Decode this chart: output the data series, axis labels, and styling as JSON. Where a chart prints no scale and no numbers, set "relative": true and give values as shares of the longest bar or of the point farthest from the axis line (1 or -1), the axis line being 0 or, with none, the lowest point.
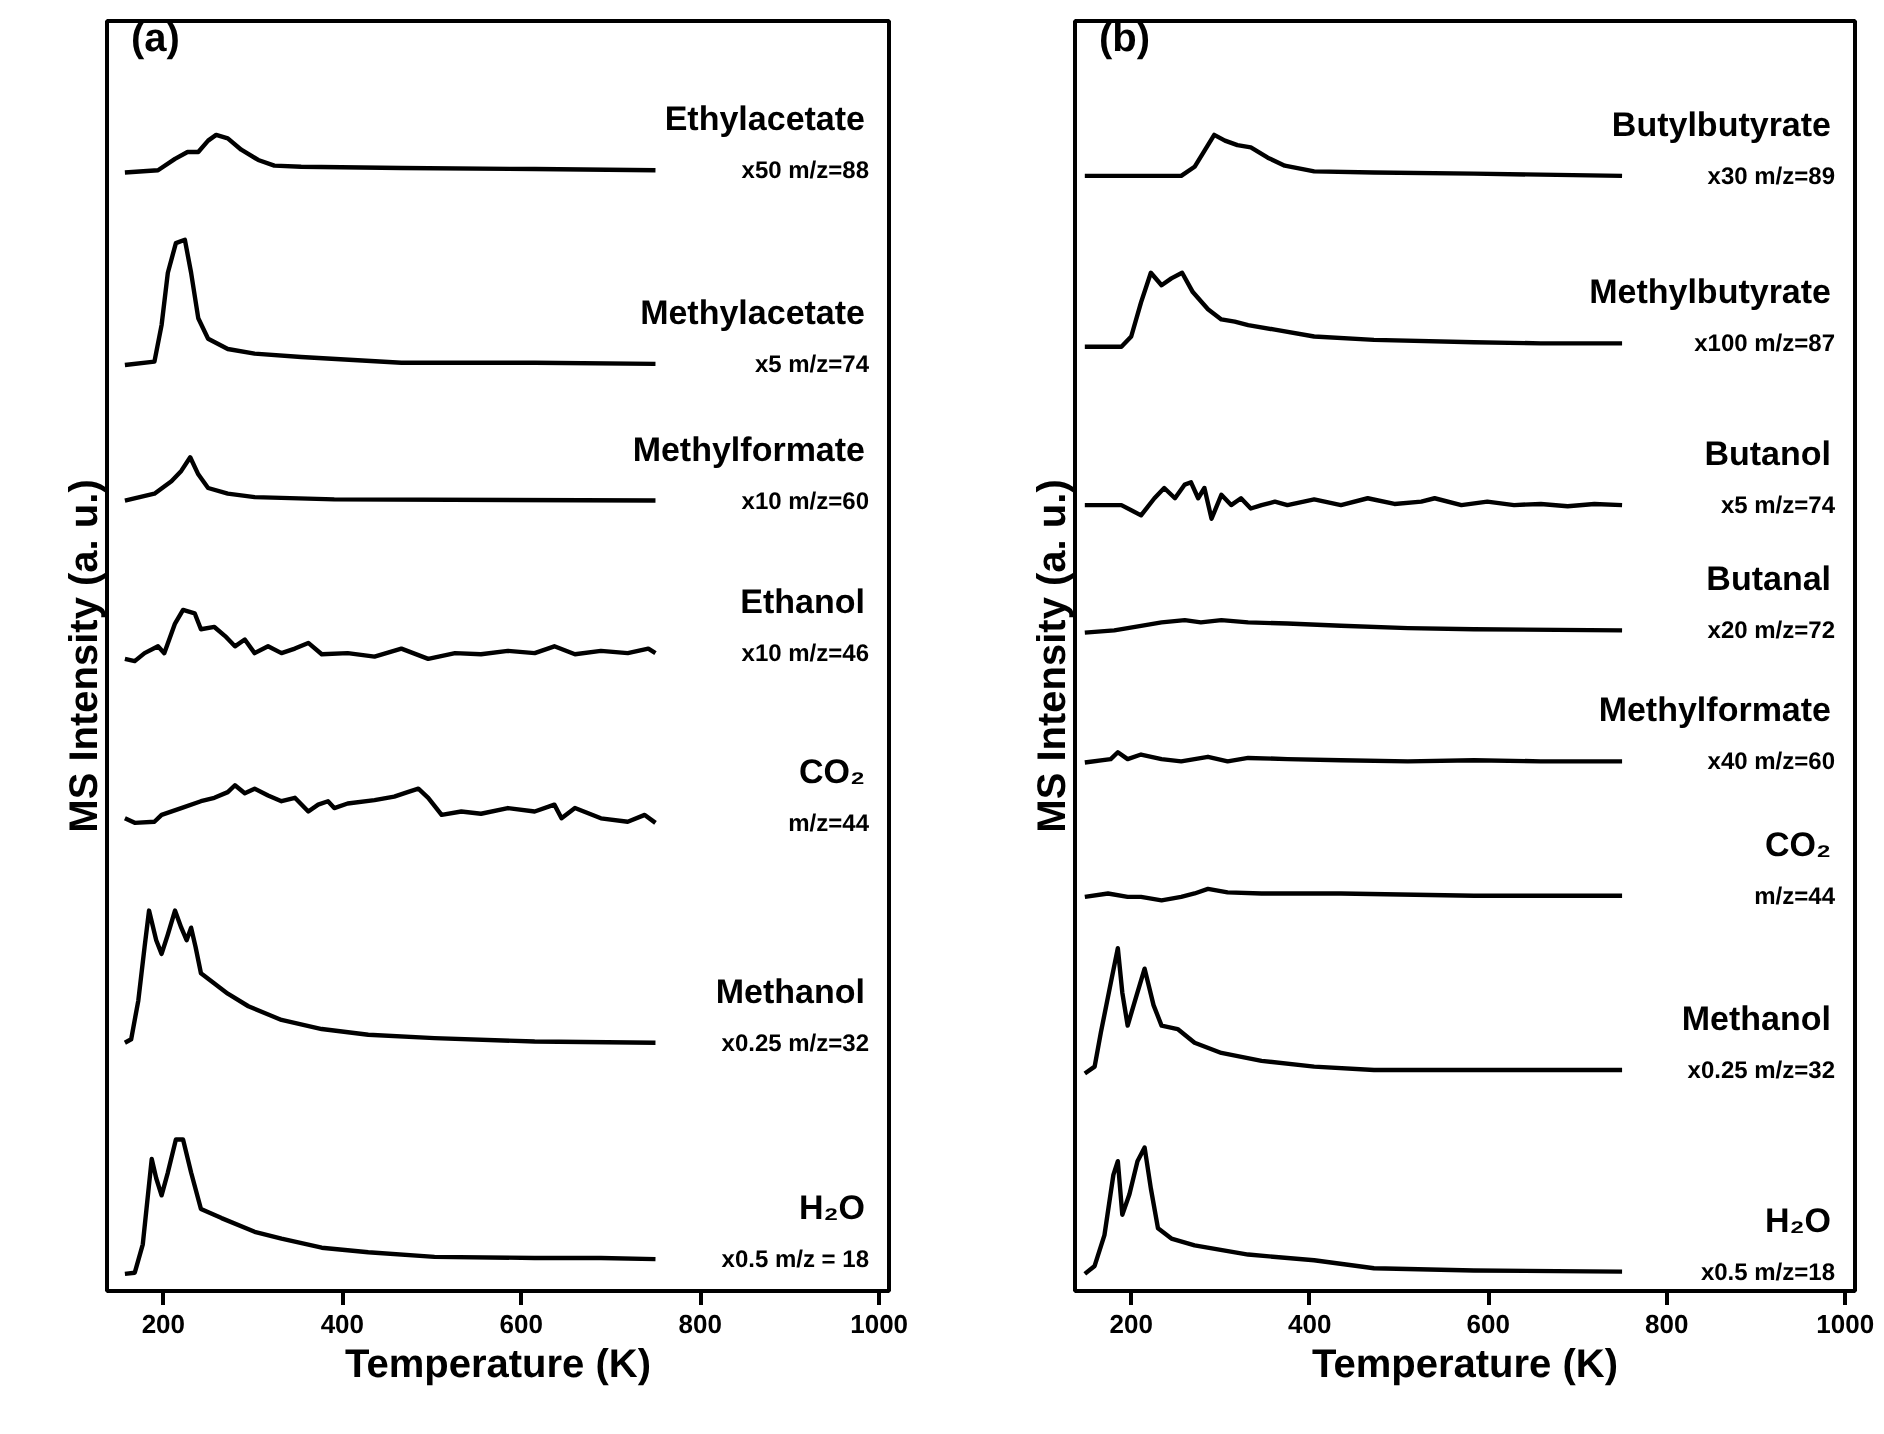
{
  "chart_data": [
    {
      "type": "line",
      "title": "(a)",
      "xlabel": "Temperature (K)",
      "ylabel": "MS Intensity (a. u.)",
      "relative": true,
      "xlim": [
        137,
        1011
      ],
      "xticks": [
        200,
        400,
        600,
        800,
        1000
      ],
      "series": [
        {
          "name": "Ethylacetate",
          "color": "#000000",
          "x": [
            157,
            194,
            213,
            227,
            239,
            250,
            259,
            272,
            287,
            306,
            324,
            354,
            466,
            615,
            750
          ],
          "values": [
            0.967,
            0.969,
            0.979,
            0.985,
            0.985,
            0.995,
            1.0,
            0.997,
            0.987,
            0.978,
            0.973,
            0.972,
            0.971,
            0.97,
            0.969
          ]
        },
        {
          "name": "Methylacetate",
          "color": "#000000",
          "x": [
            157,
            190,
            198,
            205,
            214,
            224,
            231,
            239,
            250,
            272,
            302,
            354,
            466,
            615,
            750
          ],
          "values": [
            0.798,
            0.801,
            0.833,
            0.879,
            0.905,
            0.908,
            0.879,
            0.839,
            0.821,
            0.812,
            0.808,
            0.805,
            0.8,
            0.8,
            0.799
          ]
        },
        {
          "name": "Methylformate",
          "color": "#000000",
          "x": [
            157,
            190,
            209,
            220,
            230,
            239,
            250,
            272,
            302,
            391,
            750
          ],
          "values": [
            0.679,
            0.685,
            0.696,
            0.705,
            0.717,
            0.702,
            0.69,
            0.685,
            0.682,
            0.68,
            0.679
          ]
        },
        {
          "name": "Ethanol",
          "color": "#000000",
          "x": [
            157,
            168,
            179,
            194,
            201,
            213,
            222,
            235,
            242,
            257,
            269,
            280,
            291,
            302,
            317,
            332,
            347,
            362,
            377,
            406,
            436,
            466,
            496,
            526,
            555,
            585,
            615,
            637,
            660,
            689,
            719,
            742,
            750
          ],
          "values": [
            0.54,
            0.538,
            0.545,
            0.551,
            0.545,
            0.571,
            0.583,
            0.58,
            0.566,
            0.568,
            0.56,
            0.551,
            0.557,
            0.545,
            0.551,
            0.545,
            0.549,
            0.554,
            0.544,
            0.545,
            0.542,
            0.549,
            0.54,
            0.545,
            0.544,
            0.547,
            0.545,
            0.551,
            0.544,
            0.547,
            0.545,
            0.549,
            0.545
          ]
        },
        {
          "name": "CO₂",
          "color": "#000000",
          "x": [
            157,
            168,
            190,
            198,
            220,
            242,
            257,
            272,
            280,
            291,
            302,
            317,
            332,
            347,
            362,
            373,
            384,
            391,
            406,
            436,
            458,
            473,
            485,
            496,
            511,
            533,
            555,
            585,
            615,
            637,
            645,
            660,
            689,
            719,
            738,
            750
          ],
          "values": [
            0.4,
            0.396,
            0.397,
            0.403,
            0.409,
            0.415,
            0.418,
            0.423,
            0.429,
            0.422,
            0.426,
            0.42,
            0.415,
            0.418,
            0.406,
            0.412,
            0.415,
            0.409,
            0.413,
            0.416,
            0.419,
            0.423,
            0.426,
            0.418,
            0.403,
            0.406,
            0.404,
            0.409,
            0.406,
            0.412,
            0.4,
            0.409,
            0.4,
            0.397,
            0.403,
            0.396
          ]
        },
        {
          "name": "Methanol",
          "color": "#000000",
          "x": [
            157,
            164,
            172,
            179,
            184,
            192,
            198,
            205,
            213,
            220,
            226,
            231,
            236,
            242,
            257,
            272,
            295,
            332,
            377,
            429,
            503,
            615,
            750
          ],
          "values": [
            0.203,
            0.206,
            0.24,
            0.287,
            0.319,
            0.293,
            0.281,
            0.298,
            0.319,
            0.304,
            0.293,
            0.304,
            0.287,
            0.264,
            0.255,
            0.246,
            0.235,
            0.223,
            0.215,
            0.21,
            0.207,
            0.204,
            0.203
          ]
        },
        {
          "name": "H₂O",
          "color": "#000000",
          "x": [
            157,
            168,
            177,
            187,
            192,
            198,
            205,
            214,
            222,
            231,
            242,
            265,
            302,
            332,
            377,
            429,
            503,
            615,
            689,
            750
          ],
          "values": [
            0.0,
            0.001,
            0.026,
            0.101,
            0.084,
            0.069,
            0.089,
            0.118,
            0.118,
            0.089,
            0.057,
            0.049,
            0.037,
            0.031,
            0.023,
            0.019,
            0.015,
            0.014,
            0.014,
            0.013
          ]
        }
      ],
      "annotations": [
        "x50 m/z=88",
        "x5 m/z=74",
        "x10 m/z=60",
        "x10 m/z=46",
        "m/z=44",
        "x0.25 m/z=32",
        "x0.5 m/z = 18"
      ]
    },
    {
      "type": "line",
      "title": "(b)",
      "xlabel": "Temperature (K)",
      "ylabel": "MS Intensity (a. u.)",
      "relative": true,
      "xlim": [
        137,
        1011
      ],
      "xticks": [
        200,
        400,
        600,
        800,
        1000
      ],
      "series": [
        {
          "name": "Butylbutyrate",
          "color": "#000000",
          "x": [
            148,
            211,
            256,
            271,
            282,
            293,
            305,
            319,
            334,
            353,
            372,
            405,
            472,
            584,
            750
          ],
          "values": [
            0.964,
            0.964,
            0.964,
            0.972,
            0.986,
            1.0,
            0.995,
            0.991,
            0.989,
            0.98,
            0.973,
            0.968,
            0.967,
            0.966,
            0.964
          ]
        },
        {
          "name": "Methylbutyrate",
          "color": "#000000",
          "x": [
            148,
            189,
            200,
            211,
            222,
            234,
            245,
            257,
            269,
            286,
            301,
            316,
            331,
            361,
            405,
            472,
            584,
            659,
            750
          ],
          "values": [
            0.814,
            0.814,
            0.823,
            0.853,
            0.879,
            0.868,
            0.874,
            0.879,
            0.862,
            0.847,
            0.838,
            0.836,
            0.833,
            0.829,
            0.823,
            0.82,
            0.818,
            0.817,
            0.817
          ]
        },
        {
          "name": "Butanol",
          "color": "#000000",
          "x": [
            148,
            189,
            211,
            226,
            237,
            249,
            260,
            267,
            275,
            282,
            290,
            301,
            312,
            323,
            334,
            346,
            361,
            375,
            405,
            435,
            465,
            495,
            525,
            540,
            570,
            599,
            629,
            659,
            689,
            719,
            750
          ],
          "values": [
            0.675,
            0.675,
            0.666,
            0.681,
            0.69,
            0.681,
            0.693,
            0.695,
            0.681,
            0.69,
            0.663,
            0.684,
            0.675,
            0.681,
            0.672,
            0.675,
            0.678,
            0.675,
            0.68,
            0.675,
            0.681,
            0.676,
            0.678,
            0.681,
            0.675,
            0.678,
            0.675,
            0.676,
            0.674,
            0.676,
            0.675
          ]
        },
        {
          "name": "Butanal",
          "color": "#000000",
          "x": [
            148,
            181,
            211,
            234,
            260,
            278,
            301,
            331,
            375,
            435,
            510,
            584,
            750
          ],
          "values": [
            0.563,
            0.565,
            0.569,
            0.572,
            0.574,
            0.572,
            0.574,
            0.572,
            0.571,
            0.569,
            0.567,
            0.566,
            0.565
          ]
        },
        {
          "name": "Methylformate",
          "color": "#000000",
          "x": [
            148,
            177,
            185,
            196,
            211,
            234,
            256,
            286,
            308,
            331,
            375,
            435,
            510,
            584,
            659,
            750
          ],
          "values": [
            0.449,
            0.452,
            0.458,
            0.452,
            0.456,
            0.452,
            0.45,
            0.454,
            0.45,
            0.453,
            0.452,
            0.451,
            0.45,
            0.451,
            0.45,
            0.45
          ]
        },
        {
          "name": "CO₂",
          "color": "#000000",
          "x": [
            148,
            174,
            196,
            211,
            234,
            256,
            271,
            286,
            308,
            346,
            435,
            584,
            750
          ],
          "values": [
            0.331,
            0.334,
            0.331,
            0.331,
            0.328,
            0.331,
            0.334,
            0.338,
            0.335,
            0.334,
            0.334,
            0.332,
            0.332
          ]
        },
        {
          "name": "Methanol",
          "color": "#000000",
          "x": [
            148,
            159,
            166,
            178,
            185,
            190,
            196,
            205,
            215,
            225,
            234,
            252,
            271,
            301,
            346,
            405,
            472,
            584,
            750
          ],
          "values": [
            0.176,
            0.182,
            0.212,
            0.259,
            0.286,
            0.247,
            0.218,
            0.242,
            0.268,
            0.236,
            0.218,
            0.215,
            0.203,
            0.194,
            0.187,
            0.182,
            0.179,
            0.179,
            0.179
          ]
        },
        {
          "name": "H₂O",
          "color": "#000000",
          "x": [
            148,
            159,
            170,
            180,
            185,
            190,
            198,
            207,
            215,
            222,
            230,
            245,
            271,
            331,
            405,
            472,
            584,
            750
          ],
          "values": [
            0.0,
            0.007,
            0.034,
            0.087,
            0.099,
            0.052,
            0.07,
            0.099,
            0.111,
            0.075,
            0.04,
            0.031,
            0.025,
            0.017,
            0.012,
            0.005,
            0.003,
            0.002
          ]
        }
      ],
      "annotations": [
        "x30 m/z=89",
        "x100 m/z=87",
        "x5 m/z=74",
        "x20 m/z=72",
        "x40 m/z=60",
        "m/z=44",
        "x0.25 m/z=32",
        "x0.5 m/z=18"
      ]
    }
  ]
}
